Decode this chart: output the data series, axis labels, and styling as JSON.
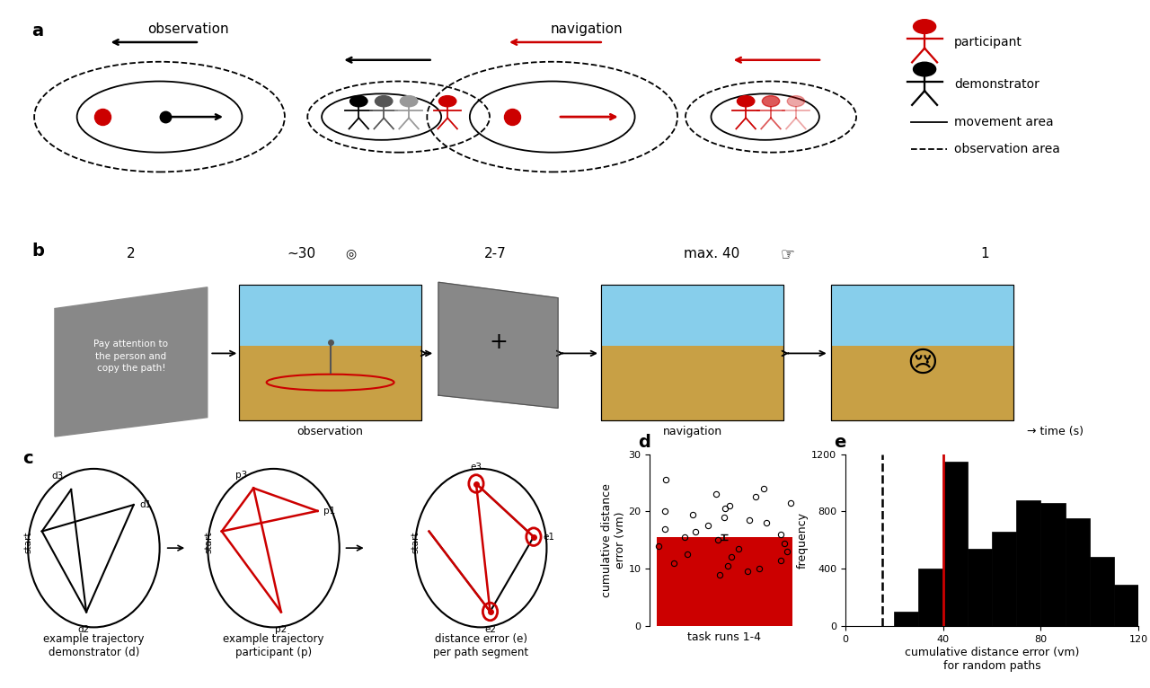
{
  "panel_a": {
    "obs_label": "observation",
    "nav_label": "navigation",
    "legend": {
      "participant": "participant",
      "demonstrator": "demonstrator",
      "movement_area": "movement area",
      "observation_area": "observation area"
    }
  },
  "panel_b": {
    "times": [
      "2",
      "~30",
      "2-7",
      "max. 40",
      "1"
    ],
    "instruction_text": "Pay attention to\nthe person and\ncopy the path!",
    "obs_label": "observation",
    "nav_label": "navigation",
    "time_label": "→ time (s)"
  },
  "panel_d": {
    "bar_color": "#cc0000",
    "bar_height": 15.5,
    "error_low": 0.4,
    "error_high": 0.5,
    "ylim": [
      0,
      30
    ],
    "yticks": [
      0,
      10,
      20,
      30
    ],
    "ylabel": "cumulative distance\nerror (vm)",
    "xlabel": "task runs 1-4",
    "scatter_y": [
      25.5,
      24.0,
      23.0,
      22.5,
      21.5,
      21.0,
      20.5,
      20.0,
      19.5,
      19.0,
      18.5,
      18.0,
      17.5,
      17.0,
      16.5,
      16.0,
      15.5,
      15.0,
      14.5,
      14.0,
      13.5,
      13.0,
      12.5,
      12.0,
      11.5,
      11.0,
      10.5,
      10.0,
      9.5,
      9.0
    ]
  },
  "panel_e": {
    "hist_edges": [
      0,
      10,
      20,
      30,
      40,
      50,
      60,
      70,
      80,
      90,
      100,
      110,
      120
    ],
    "hist_heights": [
      0,
      0,
      100,
      400,
      1150,
      540,
      660,
      880,
      860,
      750,
      480,
      290
    ],
    "dashed_x": 15,
    "red_line_x": 40,
    "ylim": [
      0,
      1200
    ],
    "yticks": [
      0,
      400,
      800,
      1200
    ],
    "xlim": [
      0,
      120
    ],
    "xticks": [
      0,
      40,
      80,
      120
    ],
    "ylabel": "frequency",
    "xlabel_line1": "cumulative distance error (vm)",
    "xlabel_line2": "for random paths"
  },
  "colors": {
    "red": "#cc0000",
    "black": "#000000",
    "white": "#ffffff",
    "gray": "#808080",
    "dark_gray": "#555555",
    "light_red": "#ff8888"
  }
}
